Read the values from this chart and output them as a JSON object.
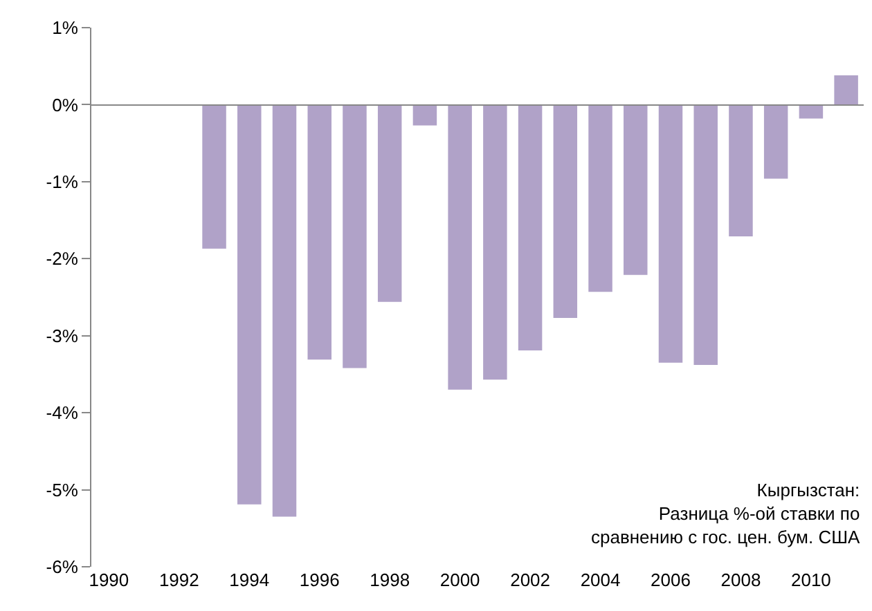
{
  "chart_data": {
    "type": "bar",
    "categories": [
      "1990",
      null,
      "1992",
      null,
      "1994",
      null,
      "1996",
      null,
      "1998",
      null,
      "2000",
      null,
      "2002",
      null,
      "2004",
      null,
      "2006",
      null,
      "2008",
      null,
      "2010",
      null
    ],
    "values": [
      null,
      null,
      null,
      -1.87,
      -5.19,
      -5.35,
      -3.31,
      -3.42,
      -2.56,
      -0.27,
      -3.7,
      -3.57,
      -3.19,
      -2.77,
      -2.43,
      -2.21,
      -3.35,
      -3.38,
      -1.71,
      -0.96,
      -0.18,
      0.38
    ],
    "color": "#b0a2c8",
    "ylim": [
      -6,
      1
    ],
    "yticks": [
      {
        "value": 1,
        "label": "1%"
      },
      {
        "value": 0,
        "label": "0%"
      },
      {
        "value": -1,
        "label": "-1%"
      },
      {
        "value": -2,
        "label": "-2%"
      },
      {
        "value": -3,
        "label": "-3%"
      },
      {
        "value": -4,
        "label": "-4%"
      },
      {
        "value": -5,
        "label": "-5%"
      },
      {
        "value": -6,
        "label": "-6%"
      }
    ],
    "annotations": [
      "Кыргызстан:\nРазница %-ой ставки по\nсравнению с гос. цен. бум. США"
    ]
  }
}
